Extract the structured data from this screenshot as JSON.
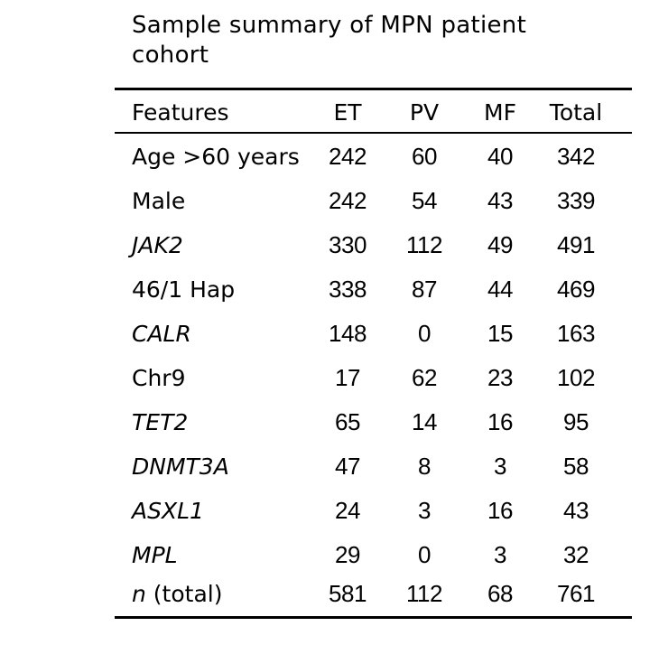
{
  "title": "Sample summary of MPN patient cohort",
  "header": {
    "features": "Features",
    "et": "ET",
    "pv": "PV",
    "mf": "MF",
    "total": "Total"
  },
  "rows": [
    {
      "feature": "Age >60 years",
      "et": "242",
      "pv": "60",
      "mf": "40",
      "total": "342"
    },
    {
      "feature": "Male",
      "et": "242",
      "pv": "54",
      "mf": "43",
      "total": "339"
    },
    {
      "feature": "JAK2",
      "et": "330",
      "pv": "112",
      "mf": "49",
      "total": "491"
    },
    {
      "feature": "46/1 Hap",
      "et": "338",
      "pv": "87",
      "mf": "44",
      "total": "469"
    },
    {
      "feature": "CALR",
      "et": "148",
      "pv": "0",
      "mf": "15",
      "total": "163"
    },
    {
      "feature": "Chr9",
      "et": "17",
      "pv": "62",
      "mf": "23",
      "total": "102"
    },
    {
      "feature": "TET2",
      "et": "65",
      "pv": "14",
      "mf": "16",
      "total": "95"
    },
    {
      "feature": "DNMT3A",
      "et": "47",
      "pv": "8",
      "mf": "3",
      "total": "58"
    },
    {
      "feature": "ASXL1",
      "et": "24",
      "pv": "3",
      "mf": "16",
      "total": "43"
    },
    {
      "feature": "MPL",
      "et": "29",
      "pv": "0",
      "mf": "3",
      "total": "32"
    }
  ],
  "total_row": {
    "n": "n",
    "label": " (total)",
    "et": "581",
    "pv": "112",
    "mf": "68",
    "total": "761"
  }
}
